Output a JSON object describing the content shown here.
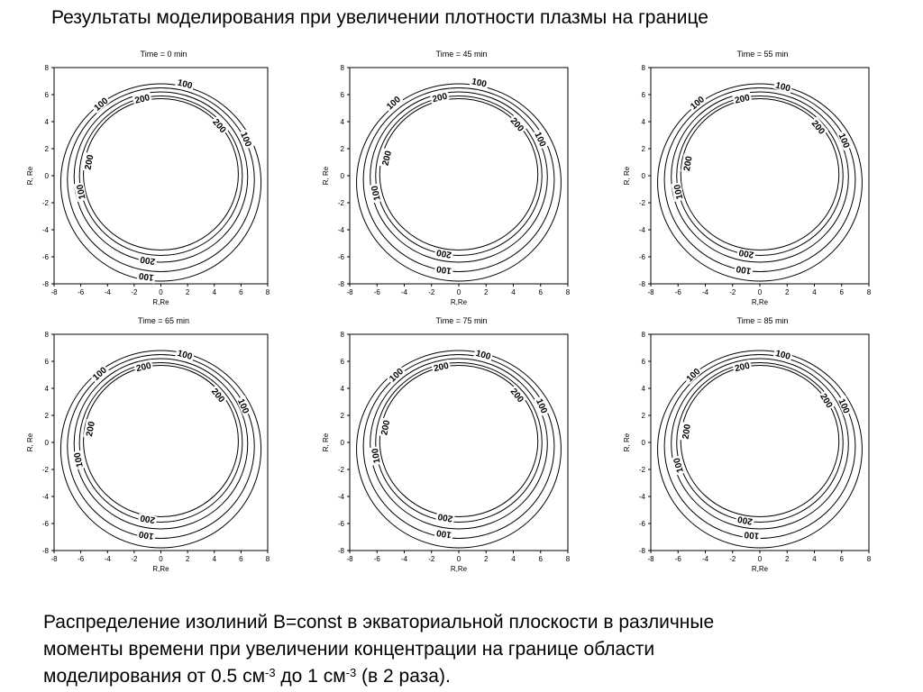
{
  "slide": {
    "title": "Результаты моделирования при увеличении плотности плазмы на границе",
    "caption": {
      "line1": "Распределение изолиний B=const в экваториальной плоскости в различные",
      "line2": "моменты времени при увеличении концентрации на границе области",
      "line3_a": "моделирования от 0.5 см",
      "sup1": "-3",
      "line3_b": " до 1 см",
      "sup2": "-3",
      "line3_c": " (в 2 раза)."
    }
  },
  "chart_data": [
    {
      "type": "contour",
      "title": "Time = 0 min",
      "xlabel": "R,Re",
      "ylabel": "R, Re",
      "xlim": [
        -8,
        8
      ],
      "ylim": [
        -8,
        8
      ],
      "xticks": [
        -8,
        -6,
        -4,
        -2,
        0,
        2,
        4,
        6,
        8
      ],
      "yticks": [
        -8,
        -6,
        -4,
        -2,
        0,
        2,
        4,
        6,
        8
      ],
      "contour_labels": [
        {
          "text": "100",
          "x": 1.8,
          "y": 6.8
        },
        {
          "text": "200",
          "x": -1.4,
          "y": 5.7
        },
        {
          "text": "100",
          "x": -4.5,
          "y": 5.3
        },
        {
          "text": "200",
          "x": 4.4,
          "y": 3.7
        },
        {
          "text": "100",
          "x": 6.4,
          "y": 2.7
        },
        {
          "text": "200",
          "x": -5.4,
          "y": 1.0
        },
        {
          "text": "100",
          "x": -6.0,
          "y": -1.2
        },
        {
          "text": "200",
          "x": -1.0,
          "y": -6.3
        },
        {
          "text": "100",
          "x": -1.1,
          "y": -7.5
        }
      ]
    },
    {
      "type": "contour",
      "title": "Time = 45 min",
      "xlabel": "R,Re",
      "ylabel": "R, Re",
      "xlim": [
        -8,
        8
      ],
      "ylim": [
        -8,
        8
      ],
      "xticks": [
        -8,
        -6,
        -4,
        -2,
        0,
        2,
        4,
        6,
        8
      ],
      "yticks": [
        -8,
        -6,
        -4,
        -2,
        0,
        2,
        4,
        6,
        8
      ],
      "contour_labels": [
        {
          "text": "100",
          "x": 1.5,
          "y": 6.9
        },
        {
          "text": "200",
          "x": -1.4,
          "y": 5.8
        },
        {
          "text": "100",
          "x": -4.8,
          "y": 5.4
        },
        {
          "text": "200",
          "x": 4.3,
          "y": 3.8
        },
        {
          "text": "100",
          "x": 6.0,
          "y": 2.7
        },
        {
          "text": "200",
          "x": -5.3,
          "y": 1.3
        },
        {
          "text": "100",
          "x": -6.1,
          "y": -1.3
        },
        {
          "text": "200",
          "x": -1.1,
          "y": -5.8
        },
        {
          "text": "100",
          "x": -1.1,
          "y": -7.0
        }
      ]
    },
    {
      "type": "contour",
      "title": "Time = 55 min",
      "xlabel": "R,Re",
      "ylabel": "R, Re",
      "xlim": [
        -8,
        8
      ],
      "ylim": [
        -8,
        8
      ],
      "xticks": [
        -8,
        -6,
        -4,
        -2,
        0,
        2,
        4,
        6,
        8
      ],
      "yticks": [
        -8,
        -6,
        -4,
        -2,
        0,
        2,
        4,
        6,
        8
      ],
      "contour_labels": [
        {
          "text": "100",
          "x": 1.7,
          "y": 6.6
        },
        {
          "text": "200",
          "x": -1.3,
          "y": 5.7
        },
        {
          "text": "100",
          "x": -4.6,
          "y": 5.4
        },
        {
          "text": "200",
          "x": 4.3,
          "y": 3.6
        },
        {
          "text": "100",
          "x": 6.2,
          "y": 2.6
        },
        {
          "text": "200",
          "x": -5.3,
          "y": 0.9
        },
        {
          "text": "100",
          "x": -6.0,
          "y": -1.2
        },
        {
          "text": "200",
          "x": -1.0,
          "y": -5.8
        },
        {
          "text": "100",
          "x": -1.2,
          "y": -7.0
        }
      ]
    },
    {
      "type": "contour",
      "title": "Time = 65 min",
      "xlabel": "R,Re",
      "ylabel": "R, Re",
      "xlim": [
        -8,
        8
      ],
      "ylim": [
        -8,
        8
      ],
      "xticks": [
        -8,
        -6,
        -4,
        -2,
        0,
        2,
        4,
        6,
        8
      ],
      "yticks": [
        -8,
        -6,
        -4,
        -2,
        0,
        2,
        4,
        6,
        8
      ],
      "contour_labels": [
        {
          "text": "100",
          "x": 1.8,
          "y": 6.5
        },
        {
          "text": "200",
          "x": -1.3,
          "y": 5.6
        },
        {
          "text": "100",
          "x": -4.6,
          "y": 5.1
        },
        {
          "text": "200",
          "x": 4.3,
          "y": 3.5
        },
        {
          "text": "100",
          "x": 6.2,
          "y": 2.7
        },
        {
          "text": "200",
          "x": -5.3,
          "y": 1.0
        },
        {
          "text": "100",
          "x": -6.2,
          "y": -1.3
        },
        {
          "text": "200",
          "x": -1.0,
          "y": -5.7
        },
        {
          "text": "100",
          "x": -1.1,
          "y": -6.9
        }
      ]
    },
    {
      "type": "contour",
      "title": "Time = 75 min",
      "xlabel": "R,Re",
      "ylabel": "R, Re",
      "xlim": [
        -8,
        8
      ],
      "ylim": [
        -8,
        8
      ],
      "xticks": [
        -8,
        -6,
        -4,
        -2,
        0,
        2,
        4,
        6,
        8
      ],
      "yticks": [
        -8,
        -6,
        -4,
        -2,
        0,
        2,
        4,
        6,
        8
      ],
      "contour_labels": [
        {
          "text": "100",
          "x": 1.8,
          "y": 6.5
        },
        {
          "text": "200",
          "x": -1.3,
          "y": 5.6
        },
        {
          "text": "100",
          "x": -4.6,
          "y": 5.0
        },
        {
          "text": "200",
          "x": 4.3,
          "y": 3.5
        },
        {
          "text": "100",
          "x": 6.1,
          "y": 2.7
        },
        {
          "text": "200",
          "x": -5.4,
          "y": 1.1
        },
        {
          "text": "100",
          "x": -6.1,
          "y": -1.0
        },
        {
          "text": "200",
          "x": -1.0,
          "y": -5.6
        },
        {
          "text": "100",
          "x": -1.1,
          "y": -6.8
        }
      ]
    },
    {
      "type": "contour",
      "title": "Time = 85 min",
      "xlabel": "R,Re",
      "ylabel": "R, Re",
      "xlim": [
        -8,
        8
      ],
      "ylim": [
        -8,
        8
      ],
      "xticks": [
        -8,
        -6,
        -4,
        -2,
        0,
        2,
        4,
        6,
        8
      ],
      "yticks": [
        -8,
        -6,
        -4,
        -2,
        0,
        2,
        4,
        6,
        8
      ],
      "contour_labels": [
        {
          "text": "100",
          "x": 1.7,
          "y": 6.5
        },
        {
          "text": "200",
          "x": -1.3,
          "y": 5.6
        },
        {
          "text": "100",
          "x": -4.9,
          "y": 5.0
        },
        {
          "text": "200",
          "x": 4.9,
          "y": 3.1
        },
        {
          "text": "100",
          "x": 6.2,
          "y": 2.7
        },
        {
          "text": "200",
          "x": -5.4,
          "y": 0.8
        },
        {
          "text": "100",
          "x": -6.0,
          "y": -1.7
        },
        {
          "text": "200",
          "x": -1.1,
          "y": -5.8
        },
        {
          "text": "100",
          "x": -0.6,
          "y": -6.9
        }
      ]
    }
  ]
}
